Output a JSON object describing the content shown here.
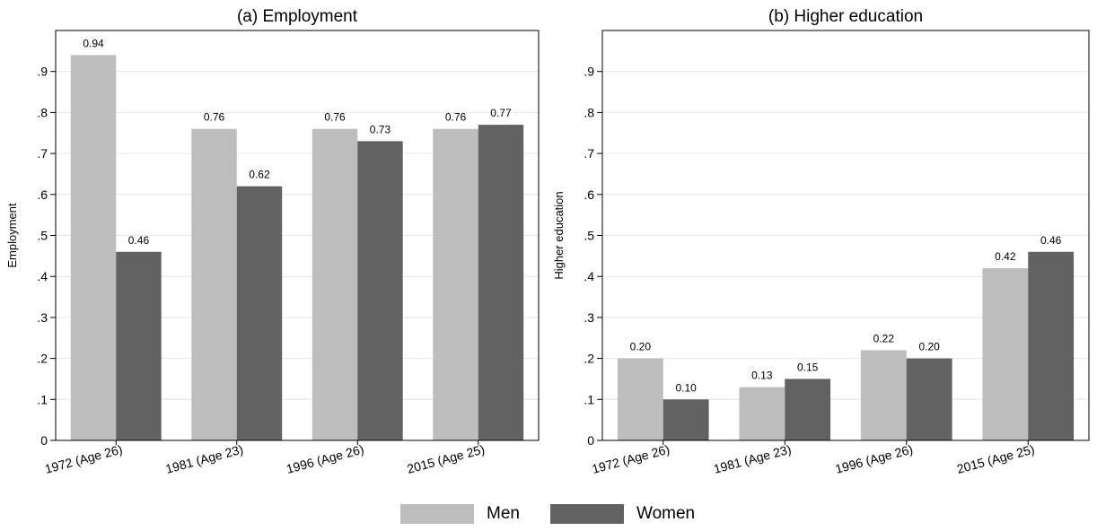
{
  "colors": {
    "men": "#bdbdbd",
    "women": "#626262",
    "grid": "#e6e6e6"
  },
  "legend": {
    "men_label": "Men",
    "women_label": "Women"
  },
  "chart_data": [
    {
      "type": "bar",
      "title": "(a) Employment",
      "ylabel": "Employment",
      "xlabel": "",
      "ylim": [
        0,
        1
      ],
      "yticks": [
        "0",
        ".1",
        ".2",
        ".3",
        ".4",
        ".5",
        ".6",
        ".7",
        ".8",
        ".9"
      ],
      "grid": true,
      "categories": [
        "1972 (Age 26)",
        "1981 (Age 23)",
        "1996 (Age 26)",
        "2015 (Age 25)"
      ],
      "series": [
        {
          "name": "Men",
          "values": [
            0.94,
            0.76,
            0.76,
            0.76
          ],
          "labels": [
            "0.94",
            "0.76",
            "0.76",
            "0.76"
          ]
        },
        {
          "name": "Women",
          "values": [
            0.46,
            0.62,
            0.73,
            0.77
          ],
          "labels": [
            "0.46",
            "0.62",
            "0.73",
            "0.77"
          ]
        }
      ]
    },
    {
      "type": "bar",
      "title": "(b) Higher education",
      "ylabel": "Higher education",
      "xlabel": "",
      "ylim": [
        0,
        1
      ],
      "yticks": [
        "0",
        ".1",
        ".2",
        ".3",
        ".4",
        ".5",
        ".6",
        ".7",
        ".8",
        ".9"
      ],
      "grid": true,
      "categories": [
        "1972 (Age 26)",
        "1981 (Age 23)",
        "1996 (Age 26)",
        "2015 (Age 25)"
      ],
      "series": [
        {
          "name": "Men",
          "values": [
            0.2,
            0.13,
            0.22,
            0.42
          ],
          "labels": [
            "0.20",
            "0.13",
            "0.22",
            "0.42"
          ]
        },
        {
          "name": "Women",
          "values": [
            0.1,
            0.15,
            0.2,
            0.46
          ],
          "labels": [
            "0.10",
            "0.15",
            "0.20",
            "0.46"
          ]
        }
      ]
    }
  ]
}
